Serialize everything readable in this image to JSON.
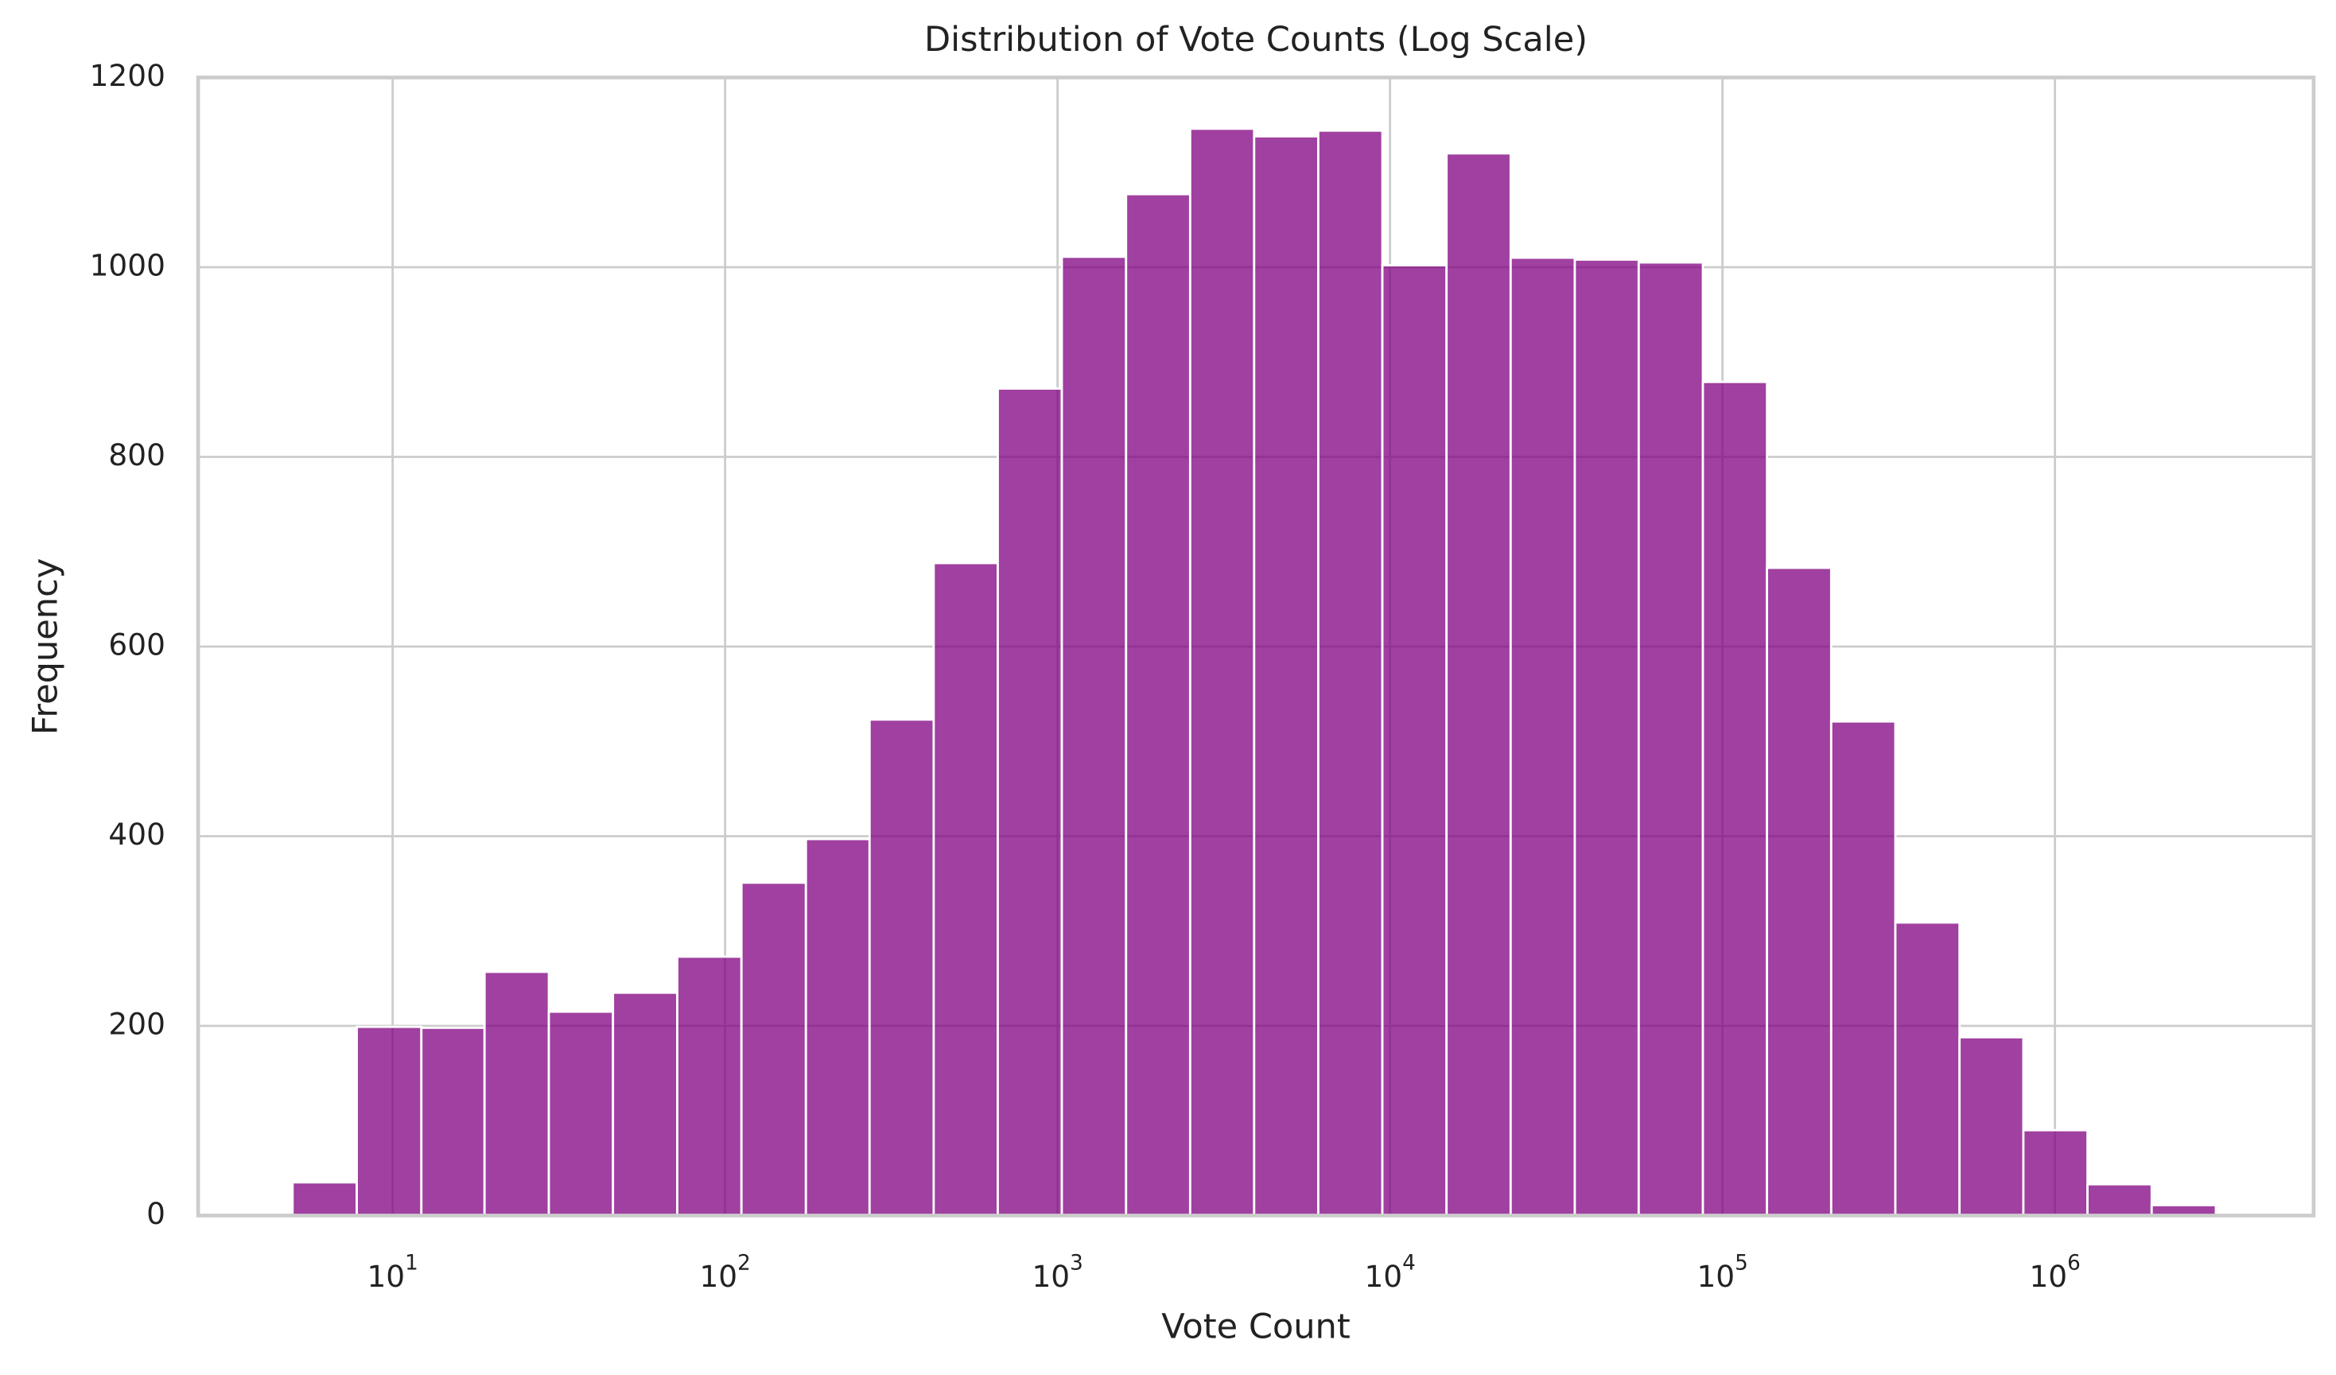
{
  "chart_data": {
    "type": "histogram",
    "title": "Distribution of Vote Counts (Log Scale)",
    "xlabel": "Vote Count",
    "ylabel": "Frequency",
    "xscale": "log",
    "grid": true,
    "color": "#800080",
    "alpha": 0.75,
    "bins": [
      5,
      7.8,
      12.2,
      18.9,
      29.5,
      46,
      71.8,
      112,
      175,
      272,
      424,
      661,
      1030,
      1607,
      2505,
      3902,
      6083,
      9484,
      14790,
      23060,
      35950,
      55980,
      87300,
      136100,
      212300,
      331100,
      516400,
      803500,
      1253000,
      1954000,
      3048000
    ],
    "counts": [
      35,
      199,
      198,
      257,
      215,
      235,
      273,
      351,
      397,
      523,
      688,
      872,
      1011,
      1077,
      1146,
      1138,
      1144,
      1002,
      1120,
      1010,
      1008,
      1005,
      879,
      683,
      521,
      309,
      188,
      90,
      33,
      11
    ],
    "xlim": [
      2.6,
      6000000
    ],
    "xticks": [
      {
        "value": 10,
        "label": "10",
        "exponent": "1"
      },
      {
        "value": 100,
        "label": "10",
        "exponent": "2"
      },
      {
        "value": 1000,
        "label": "10",
        "exponent": "3"
      },
      {
        "value": 10000,
        "label": "10",
        "exponent": "4"
      },
      {
        "value": 100000,
        "label": "10",
        "exponent": "5"
      },
      {
        "value": 1000000,
        "label": "10",
        "exponent": "6"
      }
    ],
    "ylim": [
      0,
      1200
    ],
    "yticks": [
      0,
      200,
      400,
      600,
      800,
      1000,
      1200
    ]
  }
}
